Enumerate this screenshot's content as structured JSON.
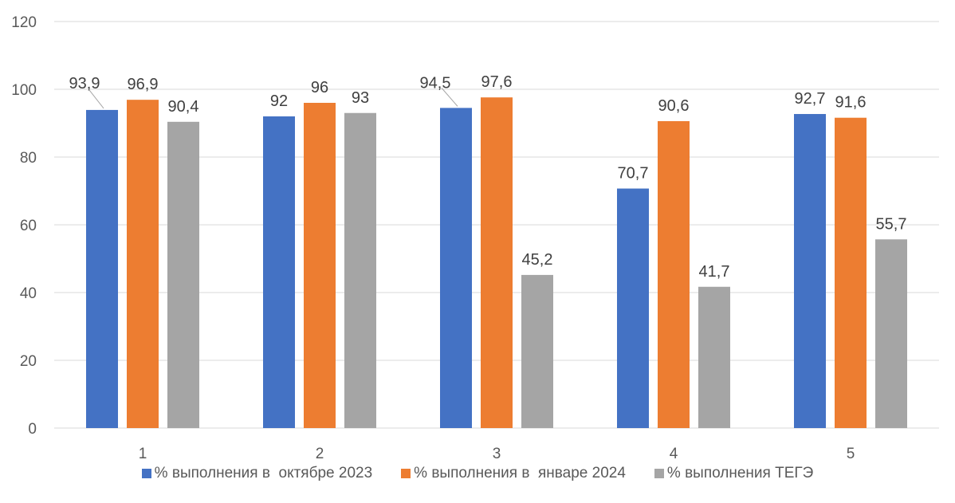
{
  "chart_data": {
    "type": "bar",
    "categories": [
      "1",
      "2",
      "3",
      "4",
      "5"
    ],
    "series": [
      {
        "name": "% выполнения в  октябре 2023",
        "color": "#4472c4",
        "values": [
          93.9,
          92,
          94.5,
          70.7,
          92.7
        ],
        "labels": [
          "93,9",
          "92",
          "94,5",
          "70,7",
          "92,7"
        ]
      },
      {
        "name": "% выполнения в  январе 2024",
        "color": "#ed7d31",
        "values": [
          96.9,
          96,
          97.6,
          90.6,
          91.6
        ],
        "labels": [
          "96,9",
          "96",
          "97,6",
          "90,6",
          "91,6"
        ]
      },
      {
        "name": "% выполнения ТЕГЭ",
        "color": "#a5a5a5",
        "values": [
          90.4,
          93,
          45.2,
          41.7,
          55.7
        ],
        "labels": [
          "90,4",
          "93",
          "45,2",
          "41,7",
          "55,7"
        ]
      }
    ],
    "yticks": [
      "0",
      "20",
      "40",
      "60",
      "80",
      "100",
      "120"
    ],
    "ylim": [
      0,
      120
    ],
    "grid": true,
    "legend_position": "bottom",
    "title": "",
    "xlabel": "",
    "ylabel": ""
  }
}
